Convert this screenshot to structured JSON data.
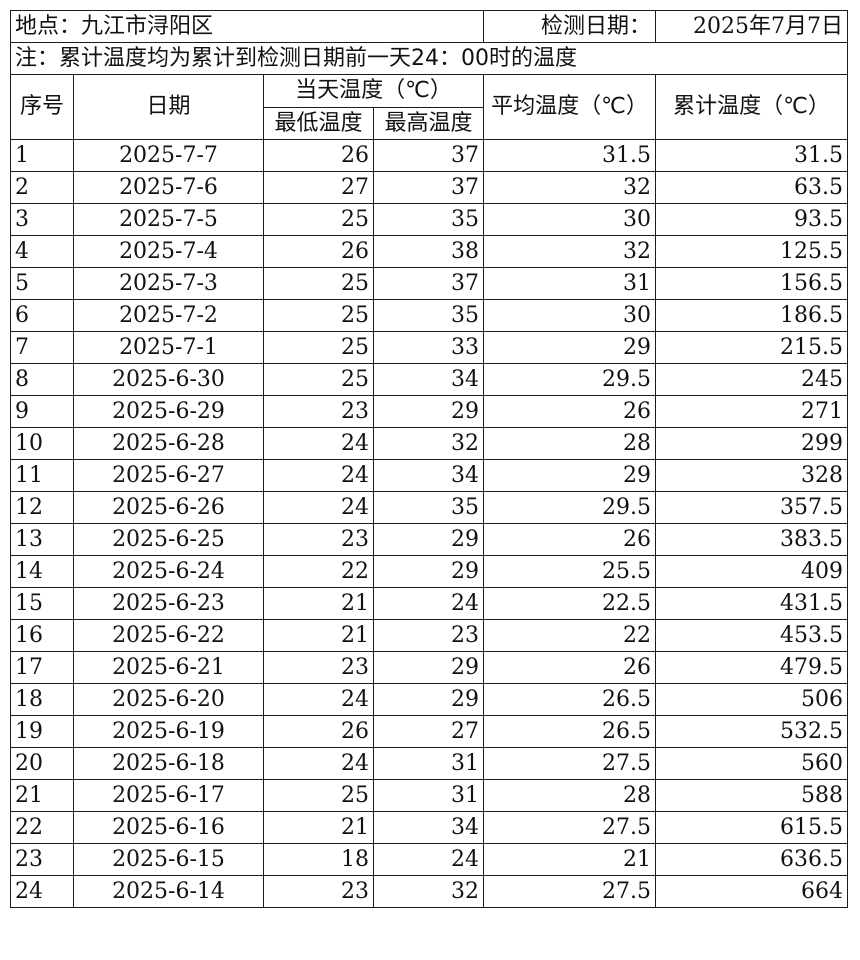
{
  "header": {
    "location": "地点：九江市浔阳区",
    "date_label": "检测日期：",
    "date_value": "2025年7月7日",
    "note": "注：累计温度均为累计到检测日期前一天24：00时的温度"
  },
  "columns": {
    "index": "序号",
    "date": "日期",
    "day_temp": "当天温度（℃）",
    "min": "最低温度",
    "max": "最高温度",
    "avg": "平均温度（℃）",
    "cum": "累计温度（℃）"
  },
  "rows": [
    {
      "no": "1",
      "date": "2025-7-7",
      "min": "26",
      "max": "37",
      "avg": "31.5",
      "cum": "31.5"
    },
    {
      "no": "2",
      "date": "2025-7-6",
      "min": "27",
      "max": "37",
      "avg": "32",
      "cum": "63.5"
    },
    {
      "no": "3",
      "date": "2025-7-5",
      "min": "25",
      "max": "35",
      "avg": "30",
      "cum": "93.5"
    },
    {
      "no": "4",
      "date": "2025-7-4",
      "min": "26",
      "max": "38",
      "avg": "32",
      "cum": "125.5"
    },
    {
      "no": "5",
      "date": "2025-7-3",
      "min": "25",
      "max": "37",
      "avg": "31",
      "cum": "156.5"
    },
    {
      "no": "6",
      "date": "2025-7-2",
      "min": "25",
      "max": "35",
      "avg": "30",
      "cum": "186.5"
    },
    {
      "no": "7",
      "date": "2025-7-1",
      "min": "25",
      "max": "33",
      "avg": "29",
      "cum": "215.5"
    },
    {
      "no": "8",
      "date": "2025-6-30",
      "min": "25",
      "max": "34",
      "avg": "29.5",
      "cum": "245"
    },
    {
      "no": "9",
      "date": "2025-6-29",
      "min": "23",
      "max": "29",
      "avg": "26",
      "cum": "271"
    },
    {
      "no": "10",
      "date": "2025-6-28",
      "min": "24",
      "max": "32",
      "avg": "28",
      "cum": "299"
    },
    {
      "no": "11",
      "date": "2025-6-27",
      "min": "24",
      "max": "34",
      "avg": "29",
      "cum": "328"
    },
    {
      "no": "12",
      "date": "2025-6-26",
      "min": "24",
      "max": "35",
      "avg": "29.5",
      "cum": "357.5"
    },
    {
      "no": "13",
      "date": "2025-6-25",
      "min": "23",
      "max": "29",
      "avg": "26",
      "cum": "383.5"
    },
    {
      "no": "14",
      "date": "2025-6-24",
      "min": "22",
      "max": "29",
      "avg": "25.5",
      "cum": "409"
    },
    {
      "no": "15",
      "date": "2025-6-23",
      "min": "21",
      "max": "24",
      "avg": "22.5",
      "cum": "431.5"
    },
    {
      "no": "16",
      "date": "2025-6-22",
      "min": "21",
      "max": "23",
      "avg": "22",
      "cum": "453.5"
    },
    {
      "no": "17",
      "date": "2025-6-21",
      "min": "23",
      "max": "29",
      "avg": "26",
      "cum": "479.5"
    },
    {
      "no": "18",
      "date": "2025-6-20",
      "min": "24",
      "max": "29",
      "avg": "26.5",
      "cum": "506"
    },
    {
      "no": "19",
      "date": "2025-6-19",
      "min": "26",
      "max": "27",
      "avg": "26.5",
      "cum": "532.5"
    },
    {
      "no": "20",
      "date": "2025-6-18",
      "min": "24",
      "max": "31",
      "avg": "27.5",
      "cum": "560"
    },
    {
      "no": "21",
      "date": "2025-6-17",
      "min": "25",
      "max": "31",
      "avg": "28",
      "cum": "588"
    },
    {
      "no": "22",
      "date": "2025-6-16",
      "min": "21",
      "max": "34",
      "avg": "27.5",
      "cum": "615.5"
    },
    {
      "no": "23",
      "date": "2025-6-15",
      "min": "18",
      "max": "24",
      "avg": "21",
      "cum": "636.5"
    },
    {
      "no": "24",
      "date": "2025-6-14",
      "min": "23",
      "max": "32",
      "avg": "27.5",
      "cum": "664"
    }
  ]
}
